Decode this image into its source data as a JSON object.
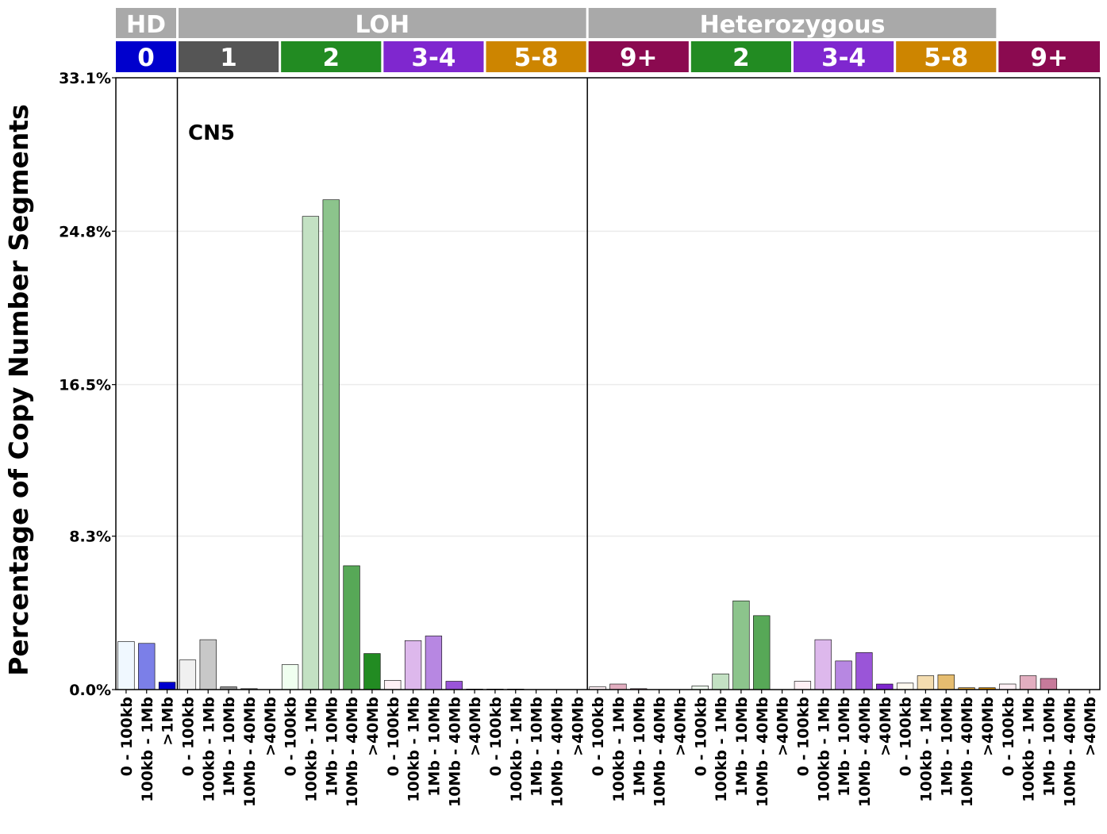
{
  "chart_data": {
    "type": "bar",
    "ylabel": "Percentage of Copy Number Segments",
    "annotation": "CN5",
    "y_ticks": [
      "0.0%",
      "8.3%",
      "16.5%",
      "24.8%",
      "33.1%"
    ],
    "ylim": [
      0,
      33.1
    ],
    "grid": "horizontal",
    "groups": [
      {
        "label": "HD",
        "start": 0,
        "count": 3
      },
      {
        "label": "LOH",
        "start": 3,
        "count": 20
      },
      {
        "label": "Heterozygous",
        "start": 23,
        "count": 20
      }
    ],
    "subgroups": [
      {
        "label": "0",
        "start": 0,
        "count": 3,
        "color": "#0000CD"
      },
      {
        "label": "1",
        "start": 3,
        "count": 5,
        "color": "#555555"
      },
      {
        "label": "2",
        "start": 8,
        "count": 5,
        "color": "#228B22"
      },
      {
        "label": "3-4",
        "start": 13,
        "count": 5,
        "color": "#7F27CF"
      },
      {
        "label": "5-8",
        "start": 18,
        "count": 5,
        "color": "#CD8500"
      },
      {
        "label": "9+",
        "start": 23,
        "count": 5,
        "color": "#8B0A50"
      },
      {
        "label": "2",
        "start": 28,
        "count": 5,
        "color": "#228B22"
      },
      {
        "label": "3-4",
        "start": 33,
        "count": 5,
        "color": "#7F27CF"
      },
      {
        "label": "5-8",
        "start": 38,
        "count": 5,
        "color": "#CD8500"
      },
      {
        "label": "9+",
        "start": 43,
        "count": 5,
        "color": "#8B0A50"
      }
    ],
    "bars": [
      {
        "label": "0 - 100kb",
        "value": 2.6,
        "color": "#F0F8FF"
      },
      {
        "label": "100kb - 1Mb",
        "value": 2.5,
        "color": "#7B7FE8"
      },
      {
        "label": ">1Mb",
        "value": 0.4,
        "color": "#0000CD"
      },
      {
        "label": "0 - 100kb",
        "value": 1.6,
        "color": "#F0F0F0"
      },
      {
        "label": "100kb - 1Mb",
        "value": 2.7,
        "color": "#C8C8C8"
      },
      {
        "label": "1Mb - 10Mb",
        "value": 0.15,
        "color": "#909090"
      },
      {
        "label": "10Mb - 40Mb",
        "value": 0.05,
        "color": "#6E6E6E"
      },
      {
        "label": ">40Mb",
        "value": 0,
        "color": "#555555"
      },
      {
        "label": "0 - 100kb",
        "value": 1.35,
        "color": "#F0FFF0"
      },
      {
        "label": "100kb - 1Mb",
        "value": 25.6,
        "color": "#C3E1C3"
      },
      {
        "label": "1Mb - 10Mb",
        "value": 26.5,
        "color": "#8CC48C"
      },
      {
        "label": "10Mb - 40Mb",
        "value": 6.7,
        "color": "#57A857"
      },
      {
        "label": ">40Mb",
        "value": 1.95,
        "color": "#228B22"
      },
      {
        "label": "0 - 100kb",
        "value": 0.5,
        "color": "#FFF0F5"
      },
      {
        "label": "100kb - 1Mb",
        "value": 2.65,
        "color": "#DDB8EC"
      },
      {
        "label": "1Mb - 10Mb",
        "value": 2.9,
        "color": "#B787E2"
      },
      {
        "label": "10Mb - 40Mb",
        "value": 0.45,
        "color": "#9A55D8"
      },
      {
        "label": ">40Mb",
        "value": 0.03,
        "color": "#7F27CF"
      },
      {
        "label": "0 - 100kb",
        "value": 0.03,
        "color": "#FFFAF0"
      },
      {
        "label": "100kb - 1Mb",
        "value": 0.03,
        "color": "#F4DDB0"
      },
      {
        "label": "1Mb - 10Mb",
        "value": 0,
        "color": "#E6BD70"
      },
      {
        "label": "10Mb - 40Mb",
        "value": 0,
        "color": "#DAA038"
      },
      {
        "label": ">40Mb",
        "value": 0,
        "color": "#CD8500"
      },
      {
        "label": "0 - 100kb",
        "value": 0.15,
        "color": "#FFF0F5"
      },
      {
        "label": "100kb - 1Mb",
        "value": 0.3,
        "color": "#E2AEC0"
      },
      {
        "label": "1Mb - 10Mb",
        "value": 0.05,
        "color": "#C77A9A"
      },
      {
        "label": "10Mb - 40Mb",
        "value": 0,
        "color": "#A94373"
      },
      {
        "label": ">40Mb",
        "value": 0,
        "color": "#8B0A50"
      },
      {
        "label": "0 - 100kb",
        "value": 0.2,
        "color": "#F0FFF0"
      },
      {
        "label": "100kb - 1Mb",
        "value": 0.85,
        "color": "#C3E1C3"
      },
      {
        "label": "1Mb - 10Mb",
        "value": 4.8,
        "color": "#8CC48C"
      },
      {
        "label": "10Mb - 40Mb",
        "value": 4.0,
        "color": "#57A857"
      },
      {
        "label": ">40Mb",
        "value": 0,
        "color": "#228B22"
      },
      {
        "label": "0 - 100kb",
        "value": 0.45,
        "color": "#FFF0F5"
      },
      {
        "label": "100kb - 1Mb",
        "value": 2.7,
        "color": "#DDB8EC"
      },
      {
        "label": "1Mb - 10Mb",
        "value": 1.55,
        "color": "#B787E2"
      },
      {
        "label": "10Mb - 40Mb",
        "value": 2.0,
        "color": "#9A55D8"
      },
      {
        "label": ">40Mb",
        "value": 0.3,
        "color": "#7F27CF"
      },
      {
        "label": "0 - 100kb",
        "value": 0.35,
        "color": "#FFFAF0"
      },
      {
        "label": "100kb - 1Mb",
        "value": 0.75,
        "color": "#F4DDB0"
      },
      {
        "label": "1Mb - 10Mb",
        "value": 0.8,
        "color": "#E6BD70"
      },
      {
        "label": "10Mb - 40Mb",
        "value": 0.1,
        "color": "#DAA038"
      },
      {
        "label": ">40Mb",
        "value": 0.1,
        "color": "#CD8500"
      },
      {
        "label": "0 - 100kb",
        "value": 0.3,
        "color": "#FFF0F5"
      },
      {
        "label": "100kb - 1Mb",
        "value": 0.75,
        "color": "#E2AEC0"
      },
      {
        "label": "1Mb - 10Mb",
        "value": 0.6,
        "color": "#C77A9A"
      },
      {
        "label": "10Mb - 40Mb",
        "value": 0,
        "color": "#A94373"
      },
      {
        "label": ">40Mb",
        "value": 0,
        "color": "#8B0A50"
      }
    ]
  }
}
